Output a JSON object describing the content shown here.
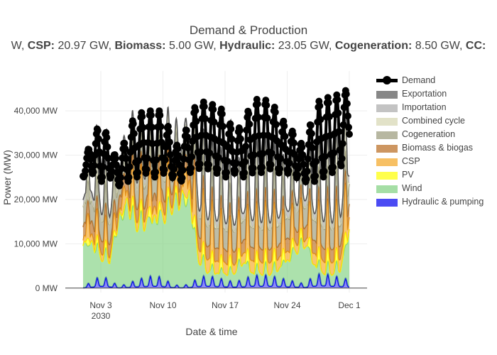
{
  "chart_data": {
    "type": "area",
    "title": "Demand & Production",
    "subtitle": "W, CSP: 20.97 GW, Biomass: 5.00 GW, Hydraulic: 23.05 GW, Cogeneration: 8.50 GW, CC:",
    "subtitle_parts": [
      {
        "text": "W, ",
        "bold": false
      },
      {
        "text": "CSP:",
        "bold": true
      },
      {
        "text": " 20.97 GW, ",
        "bold": false
      },
      {
        "text": "Biomass:",
        "bold": true
      },
      {
        "text": " 5.00 GW, ",
        "bold": false
      },
      {
        "text": "Hydraulic:",
        "bold": true
      },
      {
        "text": " 23.05 GW, ",
        "bold": false
      },
      {
        "text": "Cogeneration:",
        "bold": true
      },
      {
        "text": " 8.50 GW, ",
        "bold": false
      },
      {
        "text": "CC:",
        "bold": true
      }
    ],
    "xlabel": "Date & time",
    "ylabel": "Power (MW)",
    "xlim": [
      "2030-10-30",
      "2030-12-03"
    ],
    "ylim": [
      -1000,
      49000
    ],
    "x_ticks": [
      {
        "date": "2030-11-03",
        "label": "Nov 3",
        "sublabel": "2030"
      },
      {
        "date": "2030-11-10",
        "label": "Nov 10",
        "sublabel": ""
      },
      {
        "date": "2030-11-17",
        "label": "Nov 17",
        "sublabel": ""
      },
      {
        "date": "2030-11-24",
        "label": "Nov 24",
        "sublabel": ""
      },
      {
        "date": "2030-12-01",
        "label": "Dec 1",
        "sublabel": ""
      }
    ],
    "y_ticks": [
      {
        "value": 0,
        "label": "0 MW"
      },
      {
        "value": 10000,
        "label": "10,000 MW"
      },
      {
        "value": 20000,
        "label": "20,000 MW"
      },
      {
        "value": 30000,
        "label": "30,000 MW"
      },
      {
        "value": 40000,
        "label": "40,000 MW"
      }
    ],
    "x_start": "2030-11-01",
    "x_end": "2030-12-01",
    "x": [
      "2030-11-01",
      "2030-11-02",
      "2030-11-03",
      "2030-11-04",
      "2030-11-05",
      "2030-11-06",
      "2030-11-07",
      "2030-11-08",
      "2030-11-09",
      "2030-11-10",
      "2030-11-11",
      "2030-11-12",
      "2030-11-13",
      "2030-11-14",
      "2030-11-15",
      "2030-11-16",
      "2030-11-17",
      "2030-11-18",
      "2030-11-19",
      "2030-11-20",
      "2030-11-21",
      "2030-11-22",
      "2030-11-23",
      "2030-11-24",
      "2030-11-25",
      "2030-11-26",
      "2030-11-27",
      "2030-11-28",
      "2030-11-29",
      "2030-11-30",
      "2030-12-01"
    ],
    "legend_position": "right",
    "grid": true,
    "series": [
      {
        "name": "Demand",
        "color": "#000000",
        "style": "line-markers",
        "daily_min": [
          25000,
          26000,
          24000,
          25000,
          23000,
          24000,
          25000,
          26000,
          25000,
          26000,
          25000,
          24000,
          26000,
          27000,
          27000,
          26000,
          25000,
          26000,
          25000,
          26000,
          26000,
          27000,
          26000,
          26000,
          25000,
          24000,
          24000,
          25000,
          26000,
          27000,
          34000
        ],
        "daily_max": [
          29000,
          33000,
          38000,
          33000,
          28000,
          36000,
          39000,
          40000,
          40000,
          40000,
          34000,
          31000,
          39000,
          42000,
          42000,
          41000,
          40000,
          35000,
          37000,
          42000,
          43000,
          42000,
          40000,
          36000,
          35000,
          31000,
          41000,
          43000,
          43000,
          44000,
          45000
        ]
      },
      {
        "name": "Exportation",
        "color": "#555555",
        "style": "area",
        "values": [
          0,
          0,
          0,
          0,
          0,
          0,
          0,
          0,
          0,
          0,
          0,
          0,
          0,
          0,
          0,
          0,
          0,
          0,
          0,
          0,
          0,
          0,
          0,
          0,
          0,
          0,
          0,
          0,
          0,
          0,
          0
        ]
      },
      {
        "name": "Importation",
        "color": "#aaaaaa",
        "style": "area",
        "values": [
          1500,
          1500,
          1500,
          1500,
          1500,
          1500,
          1500,
          1500,
          1500,
          1500,
          1500,
          1500,
          1500,
          1500,
          1500,
          1500,
          1500,
          1500,
          1500,
          1500,
          1500,
          1500,
          1500,
          1500,
          1500,
          1500,
          1500,
          1500,
          1500,
          1500,
          1500
        ]
      },
      {
        "name": "Combined cycle",
        "color": "#d6d6b2",
        "style": "area",
        "values": [
          2000,
          3000,
          5000,
          3000,
          1500,
          3000,
          3000,
          3000,
          3000,
          3000,
          2000,
          1000,
          3000,
          4000,
          5000,
          5000,
          5000,
          3000,
          3000,
          5000,
          6000,
          5000,
          4000,
          3000,
          3000,
          2000,
          5000,
          6000,
          6000,
          7000,
          6000
        ]
      },
      {
        "name": "Cogeneration",
        "color": "#9a9a7a",
        "style": "area",
        "values": [
          4500,
          4500,
          4500,
          4500,
          4500,
          4500,
          4500,
          4500,
          4500,
          4500,
          4500,
          4500,
          4500,
          4500,
          4500,
          4500,
          4500,
          4500,
          4500,
          4500,
          4500,
          4500,
          4500,
          4500,
          4500,
          4500,
          4500,
          4500,
          4500,
          4500,
          4500
        ]
      },
      {
        "name": "Biomass & biogas",
        "color": "#b86b1f",
        "style": "area",
        "values": [
          3000,
          3000,
          3000,
          3000,
          3000,
          3000,
          3000,
          3000,
          3000,
          3000,
          3000,
          3000,
          3000,
          3000,
          3000,
          3000,
          3000,
          3000,
          3000,
          3000,
          3000,
          3000,
          3000,
          3000,
          3000,
          3000,
          3000,
          3000,
          3000,
          3000,
          3000
        ]
      },
      {
        "name": "CSP",
        "color": "#f5a623",
        "style": "area",
        "values": [
          5000,
          6000,
          6000,
          5000,
          3000,
          7000,
          8000,
          8000,
          8000,
          8000,
          6000,
          4000,
          9000,
          12000,
          12000,
          11000,
          10000,
          8000,
          9000,
          11000,
          11000,
          11000,
          10000,
          8000,
          8000,
          6000,
          10000,
          11000,
          11000,
          11000,
          11000
        ]
      },
      {
        "name": "PV",
        "color": "#ffff00",
        "style": "area",
        "values": [
          1500,
          2000,
          2000,
          1500,
          1000,
          2000,
          2500,
          2500,
          2500,
          2500,
          2000,
          1500,
          2500,
          3000,
          3000,
          3000,
          3000,
          2500,
          2500,
          3000,
          3000,
          3000,
          3000,
          2500,
          2500,
          2000,
          3000,
          3000,
          3000,
          3000,
          3000
        ]
      },
      {
        "name": "Wind",
        "color": "#7fd17f",
        "style": "area",
        "values": [
          10500,
          10500,
          7000,
          6500,
          16500,
          20500,
          15500,
          15500,
          16000,
          17000,
          20500,
          22000,
          22000,
          6500,
          3500,
          3000,
          3000,
          3500,
          6000,
          3000,
          3000,
          3000,
          4000,
          6000,
          9000,
          11000,
          5000,
          3000,
          3000,
          4000,
          13000
        ]
      },
      {
        "name": "Hydraulic & pumping",
        "color": "#0000ee",
        "style": "area",
        "values": [
          500,
          1500,
          3000,
          2000,
          500,
          1000,
          2000,
          2500,
          3000,
          2500,
          1000,
          500,
          1000,
          2500,
          3000,
          2500,
          2000,
          1500,
          2000,
          3000,
          3000,
          3000,
          2500,
          2000,
          1500,
          1000,
          3000,
          3500,
          3000,
          2500,
          2000
        ]
      }
    ]
  }
}
